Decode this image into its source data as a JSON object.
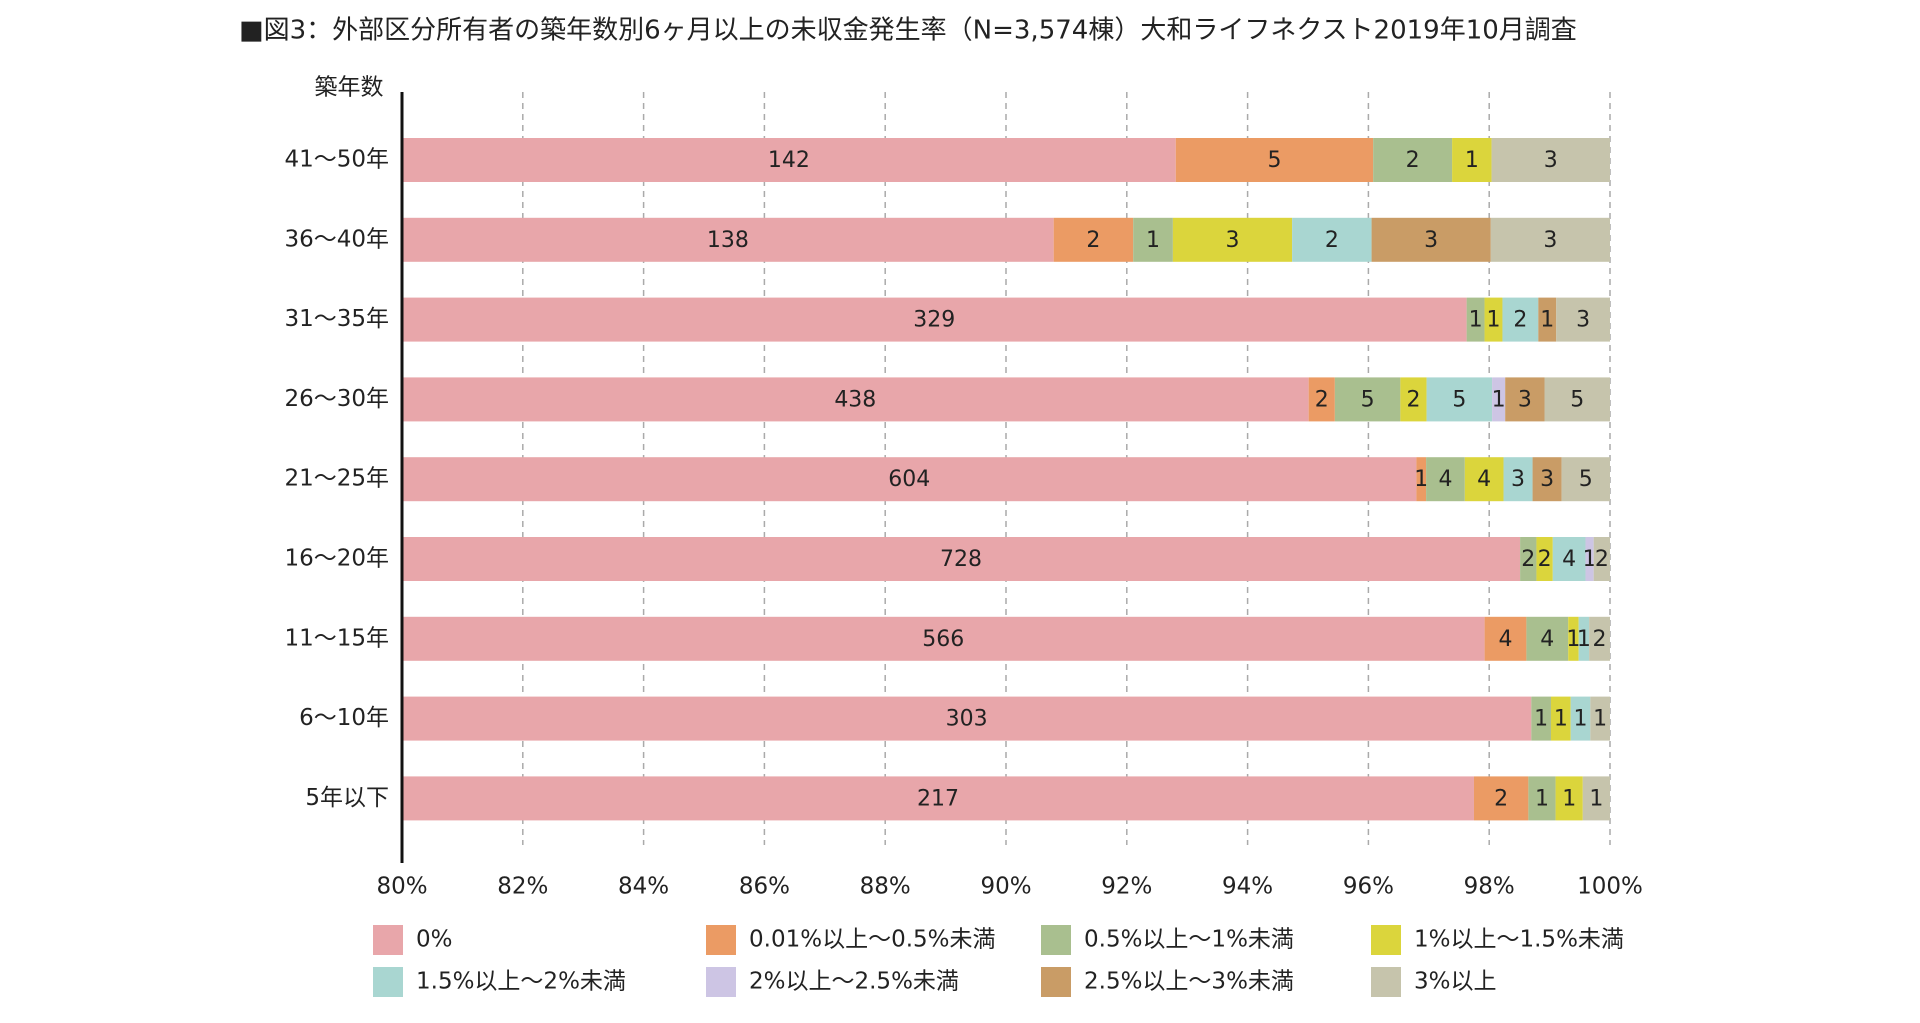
{
  "chart_data": {
    "type": "bar",
    "orientation": "horizontal",
    "stack": "percent",
    "title": "■図3：外部区分所有者の築年数別6ヶ月以上の未収金発生率（N=3,574棟）大和ライフネクスト2019年10月調査",
    "y_label": "築年数",
    "categories": [
      "41～50年",
      "36～40年",
      "31～35年",
      "26～30年",
      "21～25年",
      "16～20年",
      "11～15年",
      "6～10年",
      "5年以下"
    ],
    "series": [
      {
        "name": "0%",
        "color": "#e8a6aa",
        "values": [
          142,
          138,
          329,
          438,
          604,
          728,
          566,
          303,
          217
        ]
      },
      {
        "name": "0.01%以上～0.5%未満",
        "color": "#eb9b64",
        "values": [
          5,
          2,
          null,
          2,
          1,
          null,
          4,
          null,
          2
        ]
      },
      {
        "name": "0.5%以上～1%未満",
        "color": "#a9bf8f",
        "values": [
          2,
          1,
          1,
          5,
          4,
          2,
          4,
          1,
          1
        ]
      },
      {
        "name": "1%以上～1.5%未満",
        "color": "#dbd53c",
        "values": [
          1,
          3,
          1,
          2,
          4,
          2,
          1,
          1,
          1
        ]
      },
      {
        "name": "1.5%以上～2%未満",
        "color": "#a9d6d1",
        "values": [
          null,
          2,
          2,
          5,
          3,
          4,
          1,
          1,
          null
        ]
      },
      {
        "name": "2%以上～2.5%未満",
        "color": "#cdc5e4",
        "values": [
          null,
          null,
          null,
          1,
          null,
          1,
          null,
          null,
          null
        ]
      },
      {
        "name": "2.5%以上～3%未満",
        "color": "#c99c66",
        "values": [
          null,
          3,
          1,
          3,
          3,
          null,
          null,
          null,
          null
        ]
      },
      {
        "name": "3%以上",
        "color": "#c6c4ac",
        "values": [
          3,
          3,
          3,
          5,
          5,
          2,
          2,
          1,
          1
        ]
      }
    ],
    "xlim": [
      80,
      100
    ],
    "xticks": [
      {
        "value": 80,
        "label": "80%"
      },
      {
        "value": 82,
        "label": "82%"
      },
      {
        "value": 84,
        "label": "84%"
      },
      {
        "value": 86,
        "label": "86%"
      },
      {
        "value": 88,
        "label": "88%"
      },
      {
        "value": 90,
        "label": "90%"
      },
      {
        "value": 92,
        "label": "92%"
      },
      {
        "value": 94,
        "label": "94%"
      },
      {
        "value": 96,
        "label": "96%"
      },
      {
        "value": 98,
        "label": "98%"
      },
      {
        "value": 100,
        "label": "100%"
      }
    ],
    "grid": true,
    "legend": "bottom"
  }
}
